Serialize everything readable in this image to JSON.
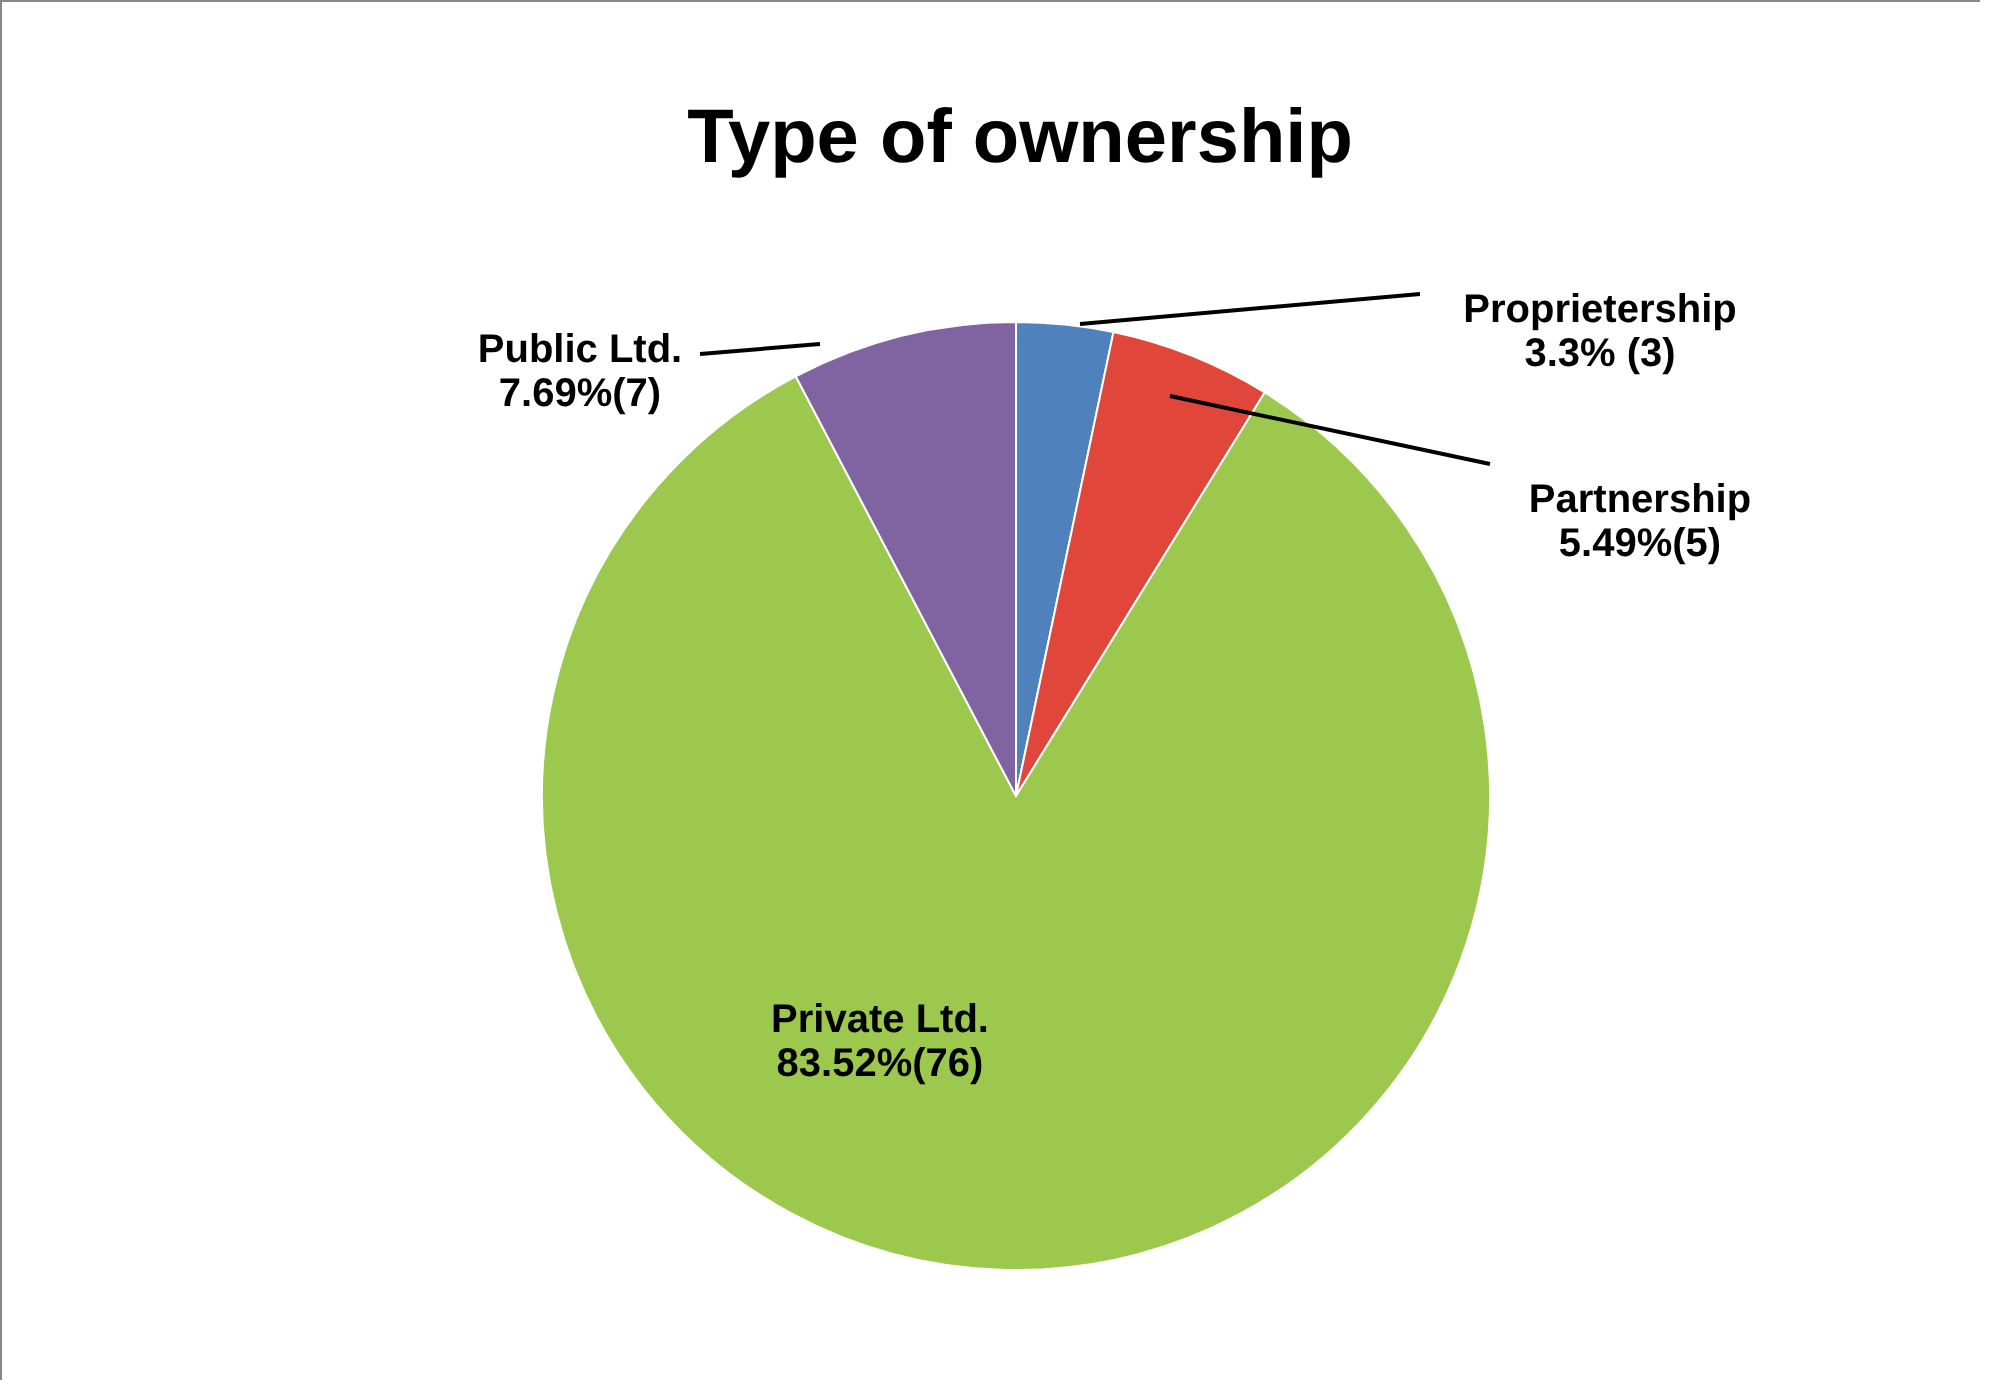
{
  "chart_data": {
    "type": "pie",
    "title": "Type of ownership",
    "categories": [
      "Proprietership",
      "Partnership",
      "Private Ltd.",
      "Public Ltd."
    ],
    "values": [
      3,
      5,
      76,
      7
    ],
    "value_labels": [
      "3.3% (3)",
      "5.49%(5)",
      "83.52%(76)",
      "7.69%(7)"
    ],
    "colors": [
      "#4f81bd",
      "#e0463a",
      "#9bc84d",
      "#8064a2"
    ],
    "legend": false
  }
}
